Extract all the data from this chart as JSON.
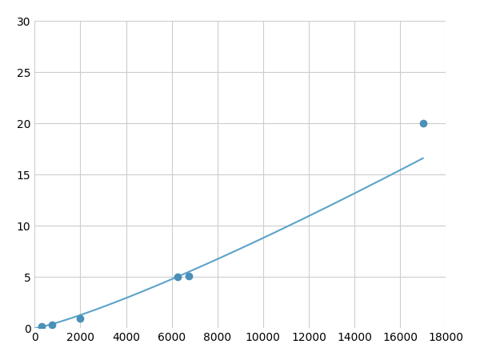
{
  "x_points": [
    310,
    750,
    2000,
    6250,
    17000
  ],
  "y_points": [
    0.2,
    0.3,
    1.0,
    5.0,
    20.0
  ],
  "line_color": "#5ba3c9",
  "marker_color": "#4a90b8",
  "marker_size": 6,
  "line_width": 1.5,
  "xlim": [
    0,
    18000
  ],
  "ylim": [
    0,
    30
  ],
  "xticks": [
    0,
    2000,
    4000,
    6000,
    8000,
    10000,
    12000,
    14000,
    16000,
    18000
  ],
  "yticks": [
    0,
    5,
    10,
    15,
    20,
    25,
    30
  ],
  "grid_color": "#cccccc",
  "background_color": "#ffffff",
  "tick_fontsize": 10,
  "all_x_markers": [
    310,
    750,
    2000,
    6250,
    6750,
    17000
  ],
  "all_y_markers": [
    0.2,
    0.3,
    1.0,
    5.0,
    5.1,
    20.0
  ]
}
